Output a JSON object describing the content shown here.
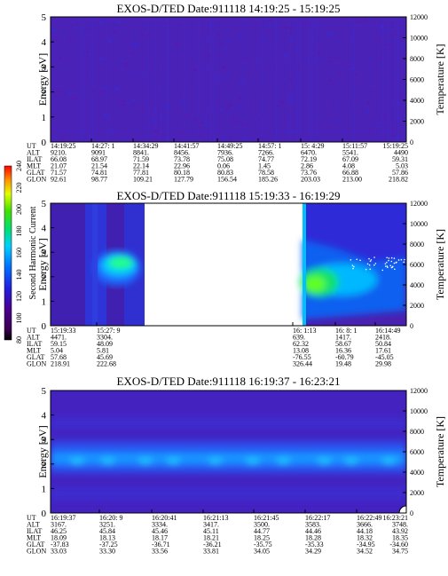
{
  "chart_data": [
    {
      "type": "heatmap",
      "title": "EXOS-D/TED   Date:911118   14:19:25 - 15:19:25",
      "ylabel": "Energy [eV]",
      "ylabel_right": "Temperature [K]",
      "ylim": [
        0,
        5
      ],
      "ylim_right": [
        0,
        12000
      ],
      "yticks": [
        "0",
        "1",
        "2",
        "3",
        "4",
        "5"
      ],
      "yticks_right": [
        "0",
        "2000",
        "4000",
        "6000",
        "8000",
        "10000",
        "12000"
      ],
      "rows": [
        {
          "label": "UT",
          "values": [
            "14:19:25",
            "14:27: 1",
            "14:34:29",
            "14:41:57",
            "14:49:25",
            "14:57: 1",
            "15: 4:29",
            "15:11:57",
            "15:19:25"
          ]
        },
        {
          "label": "ALT",
          "values": [
            "9210.",
            "9091",
            "8841.",
            "8456.",
            "7936.",
            "7266.",
            "6470.",
            "5541.",
            "4490"
          ]
        },
        {
          "label": "ILAT",
          "values": [
            "66.08",
            "68.97",
            "71.59",
            "73.78",
            "75.08",
            "74.77",
            "72.19",
            "67.09",
            "59.31"
          ]
        },
        {
          "label": "MLT",
          "values": [
            "21.07",
            "21.54",
            "22.14",
            "22.96",
            "0.06",
            "1.45",
            "2.86",
            "4.08",
            "5.03"
          ]
        },
        {
          "label": "GLAT",
          "values": [
            "71.57",
            "74.81",
            "77.81",
            "80.18",
            "80.83",
            "78.58",
            "73.76",
            "66.88",
            "57.86"
          ]
        },
        {
          "label": "GLON",
          "values": [
            "92.61",
            "98.77",
            "109.21",
            "127.79",
            "156.54",
            "185.26",
            "203.03",
            "213.00",
            "218.82"
          ]
        }
      ]
    },
    {
      "type": "heatmap",
      "title": "EXOS-D/TED   Date:911118   15:19:33 - 16:19:29",
      "ylabel": "Energy [eV]",
      "ylabel_right": "Temperature [K]",
      "ylim": [
        0,
        5
      ],
      "ylim_right": [
        0,
        12000
      ],
      "yticks": [
        "0",
        "1",
        "2",
        "3",
        "4",
        "5"
      ],
      "yticks_right": [
        "0",
        "2000",
        "4000",
        "6000",
        "8000",
        "10000",
        "12000"
      ],
      "colorbar": {
        "label": "Second Harmonic Current",
        "ticks": [
          "80",
          "100",
          "120",
          "140",
          "160",
          "180",
          "200",
          "220",
          "240"
        ]
      },
      "rows": [
        {
          "label": "UT",
          "values": [
            "15:19:33",
            "15:27: 9",
            "16: 1:13",
            "16: 8: 1",
            "16:14:49"
          ]
        },
        {
          "label": "ALT",
          "values": [
            "4471.",
            "3304.",
            "639.",
            "1417.",
            "2418."
          ]
        },
        {
          "label": "ILAT",
          "values": [
            "59.15",
            "48.09",
            "62.32",
            "58.67",
            "50.84"
          ]
        },
        {
          "label": "MLT",
          "values": [
            "5.04",
            "5.81",
            "13.08",
            "16.36",
            "17.61"
          ]
        },
        {
          "label": "GLAT",
          "values": [
            "57.68",
            "45.69",
            "-76.55",
            "-60.79",
            "-45.05"
          ]
        },
        {
          "label": "GLON",
          "values": [
            "218.91",
            "222.68",
            "326.44",
            "19.48",
            "29.98"
          ]
        }
      ]
    },
    {
      "type": "heatmap",
      "title": "EXOS-D/TED   Date:911118   16:19:37 - 16:23:21",
      "ylabel": "Energy [eV]",
      "ylabel_right": "Temperature [K]",
      "ylim": [
        0,
        5
      ],
      "ylim_right": [
        0,
        12000
      ],
      "yticks": [
        "0",
        "1",
        "2",
        "3",
        "4",
        "5"
      ],
      "yticks_right": [
        "0",
        "2000",
        "4000",
        "6000",
        "8000",
        "10000",
        "12000"
      ],
      "rows": [
        {
          "label": "UT",
          "values": [
            "16:19:37",
            "16:20: 9",
            "16:20:41",
            "16:21:13",
            "16:21:45",
            "16:22:17",
            "16:22:49",
            "16:23:21"
          ]
        },
        {
          "label": "ALT",
          "values": [
            "3167.",
            "3251.",
            "3334.",
            "3417.",
            "3500.",
            "3583.",
            "3666.",
            "3748."
          ]
        },
        {
          "label": "ILAT",
          "values": [
            "46.25",
            "45.84",
            "45.46",
            "45.11",
            "44.77",
            "44.46",
            "44.18",
            "43.92"
          ]
        },
        {
          "label": "MLT",
          "values": [
            "18.09",
            "18.13",
            "18.17",
            "18.21",
            "18.25",
            "18.28",
            "18.32",
            "18.35"
          ]
        },
        {
          "label": "GLAT",
          "values": [
            "-37.83",
            "-37.25",
            "-36.71",
            "-36.21",
            "-35.75",
            "-35.33",
            "-34.95",
            "-34.60"
          ]
        },
        {
          "label": "GLON",
          "values": [
            "33.03",
            "33.30",
            "33.56",
            "33.81",
            "34.05",
            "34.29",
            "34.52",
            "34.75"
          ]
        }
      ]
    }
  ]
}
